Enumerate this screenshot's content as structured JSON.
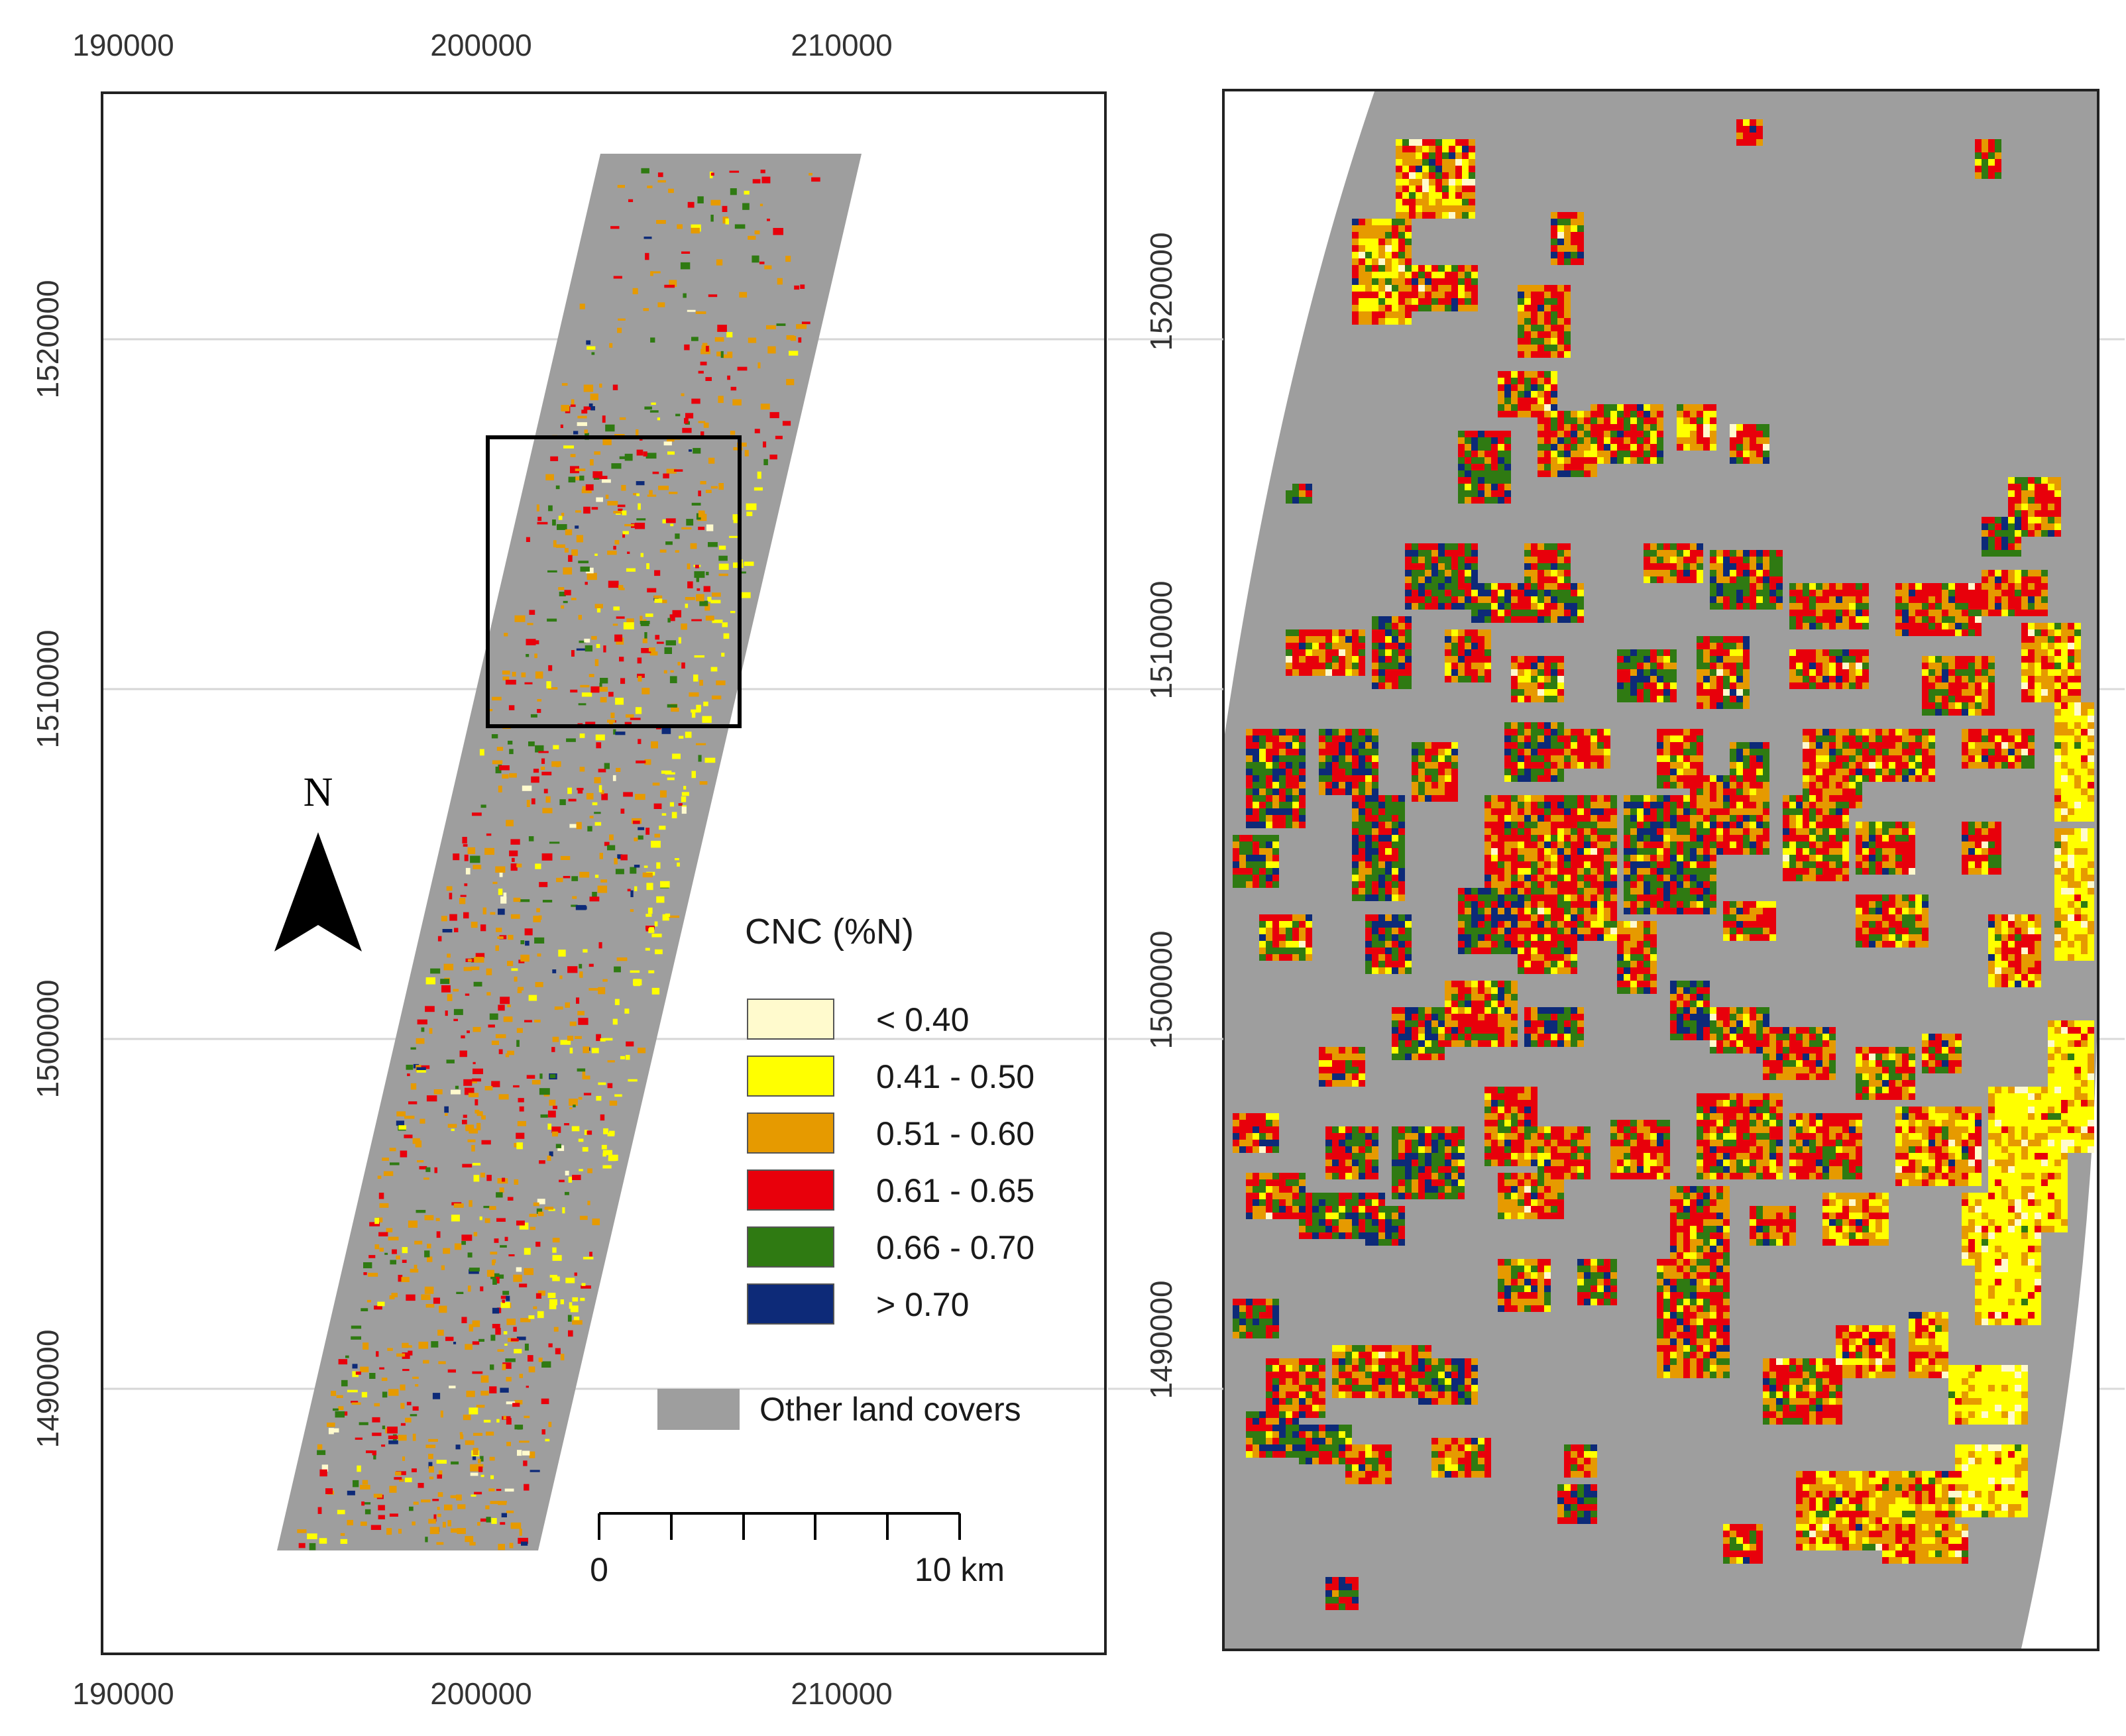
{
  "map": {
    "x_ticks_top": [
      "190000",
      "200000",
      "210000"
    ],
    "x_ticks_bottom": [
      "190000",
      "200000",
      "210000"
    ],
    "y_ticks_left": [
      "1520000",
      "1510000",
      "1500000",
      "1490000"
    ],
    "y_ticks_right": [
      "1520000",
      "1510000",
      "1500000",
      "1490000"
    ]
  },
  "north_arrow": {
    "label": "N"
  },
  "legend": {
    "title": "CNC (%N)",
    "classes": [
      {
        "label": "< 0.40",
        "color": "#fffacd"
      },
      {
        "label": "0.41 - 0.50",
        "color": "#ffff00"
      },
      {
        "label": "0.51 - 0.60",
        "color": "#e69a00"
      },
      {
        "label": "0.61 - 0.65",
        "color": "#e8000b"
      },
      {
        "label": "0.66 - 0.70",
        "color": "#2f7a12"
      },
      {
        "label": "> 0.70",
        "color": "#0d2a78"
      }
    ],
    "other": {
      "label": "Other land covers",
      "color": "#9e9e9e"
    }
  },
  "scale_bar": {
    "start_label": "0",
    "end_label": "10 km"
  }
}
